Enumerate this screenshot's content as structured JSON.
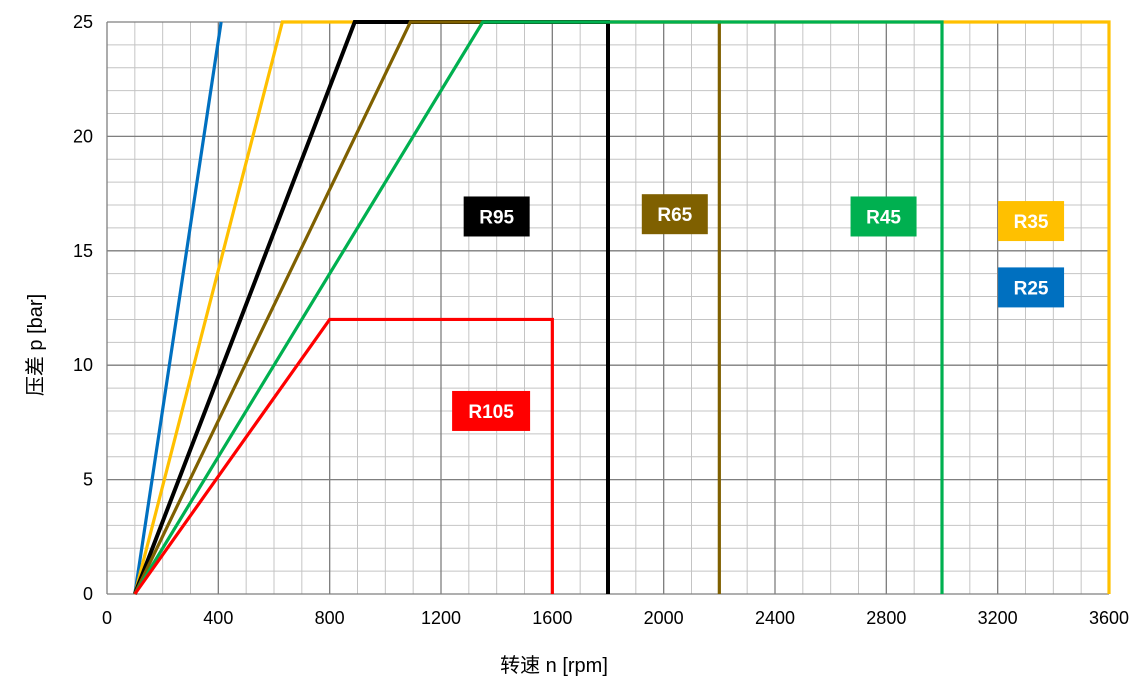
{
  "chart_data": {
    "type": "line",
    "title": "",
    "xlabel": "转速 n [rpm]",
    "ylabel": "压差 p [bar]",
    "xlim": [
      0,
      3600
    ],
    "ylim": [
      0,
      25
    ],
    "x_ticks": [
      "0",
      "400",
      "800",
      "1200",
      "1600",
      "2000",
      "2400",
      "2800",
      "3200",
      "3600"
    ],
    "y_ticks": [
      "0",
      "5",
      "10",
      "15",
      "20",
      "25"
    ],
    "grid": true,
    "legend": "labels-inside-plot",
    "series": [
      {
        "name": "R25",
        "color": "#0070C0",
        "x": [
          100,
          410
        ],
        "y": [
          0,
          25
        ]
      },
      {
        "name": "R35",
        "color": "#FFC000",
        "x": [
          100,
          630,
          3600,
          3600
        ],
        "y": [
          0,
          25,
          25,
          0
        ]
      },
      {
        "name": "R95",
        "color": "#000000",
        "x": [
          100,
          890,
          1800,
          1800
        ],
        "y": [
          0,
          25,
          25,
          0
        ]
      },
      {
        "name": "R65",
        "color": "#7F6000",
        "x": [
          100,
          1090,
          2200,
          2200
        ],
        "y": [
          0,
          25,
          25,
          0
        ]
      },
      {
        "name": "R45",
        "color": "#00B050",
        "x": [
          100,
          1350,
          3000,
          3000
        ],
        "y": [
          0,
          25,
          25,
          0
        ]
      },
      {
        "name": "R105",
        "color": "#FF0000",
        "x": [
          100,
          800,
          1600,
          1600
        ],
        "y": [
          0,
          12,
          12,
          0
        ]
      }
    ],
    "labels": [
      {
        "text": "R95",
        "color": "#000000",
        "x": 1400,
        "y": 16.5
      },
      {
        "text": "R65",
        "color": "#7F6000",
        "x": 2040,
        "y": 16.6
      },
      {
        "text": "R45",
        "color": "#00B050",
        "x": 2790,
        "y": 16.5
      },
      {
        "text": "R35",
        "color": "#FFC000",
        "x": 3320,
        "y": 16.3
      },
      {
        "text": "R25",
        "color": "#0070C0",
        "x": 3320,
        "y": 13.4
      },
      {
        "text": "R105",
        "color": "#FF0000",
        "x": 1380,
        "y": 8.0
      }
    ]
  }
}
